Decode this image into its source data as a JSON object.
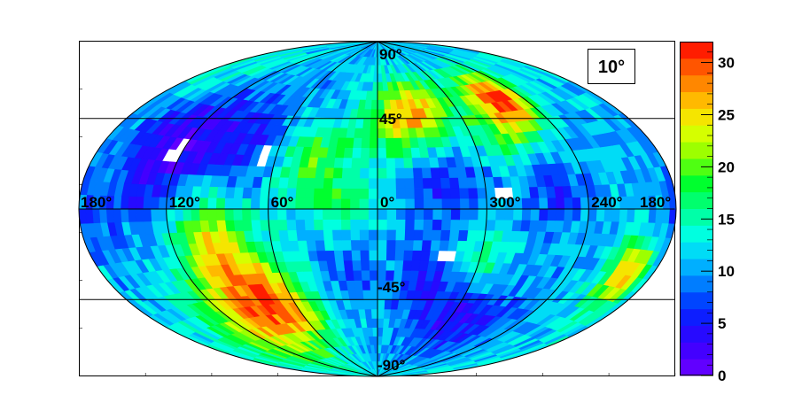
{
  "chart_data": {
    "type": "heatmap",
    "projection": "aitoff-hammer",
    "annotation": "10°",
    "longitude_labels": [
      "180°",
      "120°",
      "60°",
      "0°",
      "300°",
      "240°",
      "180°"
    ],
    "latitude_labels": [
      "90°",
      "45°",
      "-45°",
      "-90°"
    ],
    "colorbar": {
      "min": 0,
      "max": 32,
      "tick_labels": [
        "0",
        "5",
        "10",
        "15",
        "20",
        "25",
        "30"
      ]
    },
    "hotspots": [
      {
        "lon": 95,
        "lat": -20,
        "value": 25,
        "spread": 18
      },
      {
        "lon": 70,
        "lat": -45,
        "value": 25,
        "spread": 14
      },
      {
        "lon": 110,
        "lat": -55,
        "value": 20,
        "spread": 14
      },
      {
        "lon": 40,
        "lat": 25,
        "value": 18,
        "spread": 14
      },
      {
        "lon": 20,
        "lat": 5,
        "value": 16,
        "spread": 15
      },
      {
        "lon": 330,
        "lat": 50,
        "value": 24,
        "spread": 12
      },
      {
        "lon": 350,
        "lat": 40,
        "value": 18,
        "spread": 12
      },
      {
        "lon": 258,
        "lat": 52,
        "value": 29,
        "spread": 10
      },
      {
        "lon": 278,
        "lat": 38,
        "value": 20,
        "spread": 12
      },
      {
        "lon": 200,
        "lat": -25,
        "value": 27,
        "spread": 10
      },
      {
        "lon": 300,
        "lat": -25,
        "value": 18,
        "spread": 12
      },
      {
        "lon": 160,
        "lat": 60,
        "value": 14,
        "spread": 15
      },
      {
        "lon": 140,
        "lat": -65,
        "value": 14,
        "spread": 18
      }
    ],
    "coldspots": [
      {
        "lon": 130,
        "lat": 25,
        "value": 2,
        "spread": 20
      },
      {
        "lon": 80,
        "lat": 30,
        "value": 5,
        "spread": 15
      },
      {
        "lon": 320,
        "lat": 10,
        "value": 6,
        "spread": 14
      },
      {
        "lon": 320,
        "lat": -35,
        "value": 4,
        "spread": 15
      },
      {
        "lon": 285,
        "lat": -55,
        "value": 5,
        "spread": 14
      },
      {
        "lon": 260,
        "lat": 10,
        "value": 6,
        "spread": 12
      },
      {
        "lon": 20,
        "lat": -30,
        "value": 7,
        "spread": 12
      },
      {
        "lon": 175,
        "lat": -10,
        "value": 7,
        "spread": 12
      }
    ],
    "empty_bins": [
      {
        "lon": 125,
        "lat": 22
      },
      {
        "lon": 121,
        "lat": 25
      },
      {
        "lon": 66,
        "lat": 25
      },
      {
        "lon": 290,
        "lat": 8
      },
      {
        "lon": 320,
        "lat": -23
      }
    ]
  }
}
